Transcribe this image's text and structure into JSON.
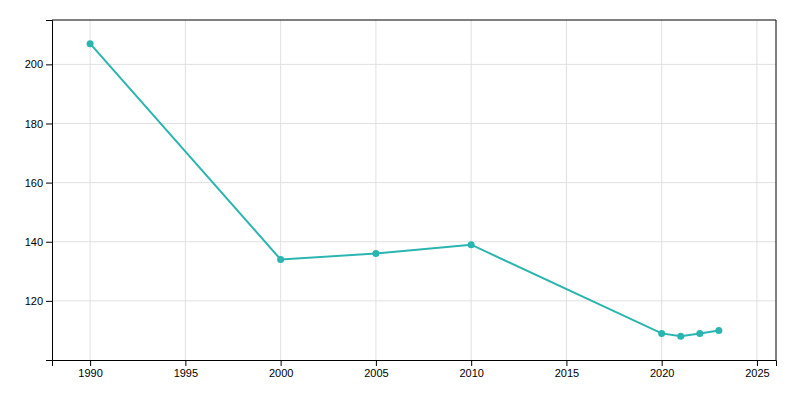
{
  "chart_data": {
    "type": "line",
    "x": [
      1990,
      2000,
      2005,
      2010,
      2020,
      2021,
      2022,
      2023
    ],
    "values": [
      207,
      134,
      136,
      139,
      109,
      108,
      109,
      110
    ],
    "color": "#2ab5b0",
    "marker": "circle",
    "xlim": [
      1988,
      2026
    ],
    "ylim": [
      100,
      215
    ],
    "xticks": [
      1990,
      1995,
      2000,
      2005,
      2010,
      2015,
      2020,
      2025
    ],
    "yticks": [
      120,
      140,
      160,
      180,
      200
    ],
    "grid": true
  }
}
